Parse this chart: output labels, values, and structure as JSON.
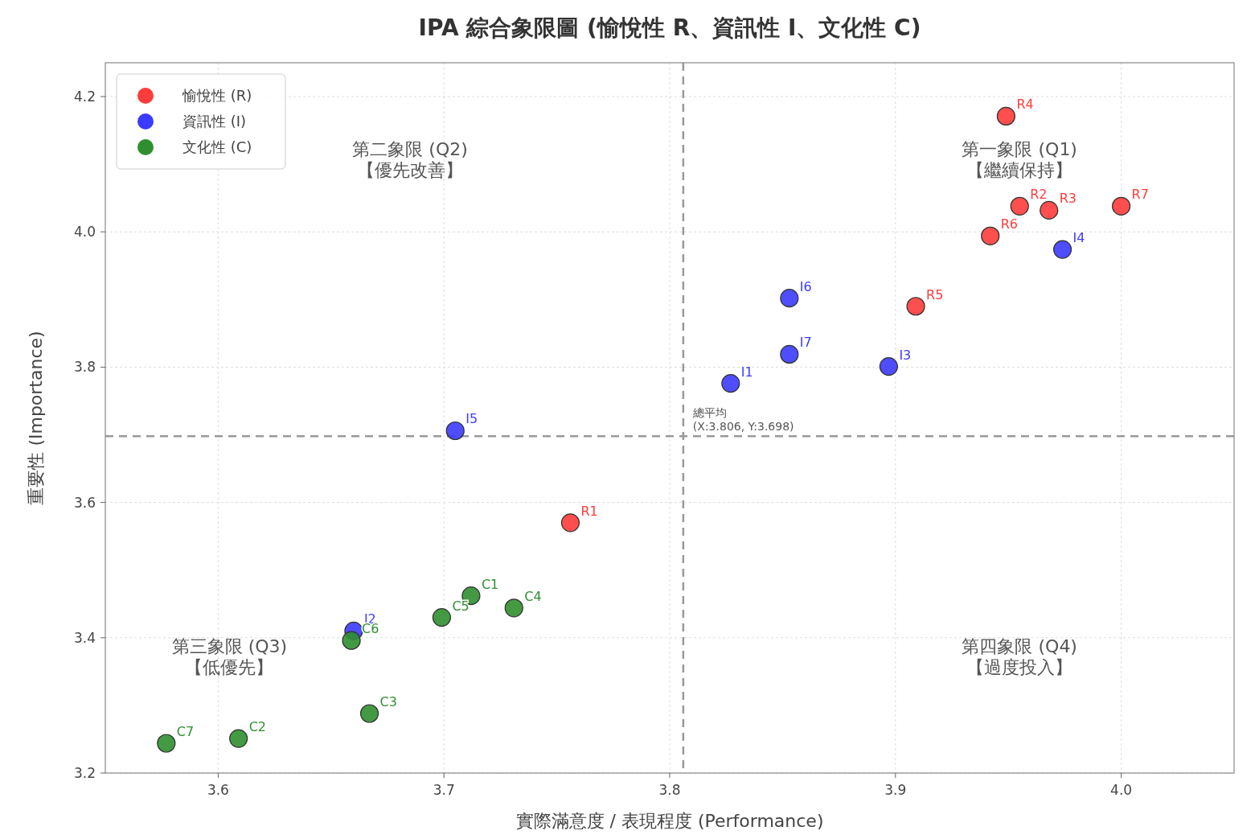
{
  "chart_data": {
    "type": "scatter",
    "title": "IPA 綜合象限圖 (愉悅性 R、資訊性 I、文化性 C)",
    "xlabel": "實際滿意度 / 表現程度 (Performance)",
    "ylabel": "重要性 (Importance)",
    "xlim": [
      3.55,
      4.05
    ],
    "ylim": [
      3.2,
      4.25
    ],
    "xticks": [
      3.6,
      3.7,
      3.8,
      3.9,
      {
        "value": 4,
        "label": "4.0"
      }
    ],
    "yticks": [
      3.2,
      3.4,
      3.6,
      3.8,
      {
        "value": 4,
        "label": "4.0"
      },
      4.2
    ],
    "grid": true,
    "legend": "top left",
    "marker": "circle",
    "series": [
      {
        "name": "愉悅性 (R)",
        "color": "#ff3b3b",
        "x": [
          3.756,
          3.955,
          3.968,
          3.949,
          3.909,
          3.942,
          4.0
        ],
        "values": [
          3.57,
          4.038,
          4.032,
          4.171,
          3.89,
          3.994,
          4.038
        ],
        "value_labels": [
          "R1",
          "R2",
          "R3",
          "R4",
          "R5",
          "R6",
          "R7"
        ]
      },
      {
        "name": "資訊性 (I)",
        "color": "#3b3bff",
        "x": [
          3.827,
          3.66,
          3.897,
          3.974,
          3.705,
          3.853,
          3.853
        ],
        "values": [
          3.776,
          3.41,
          3.801,
          3.974,
          3.706,
          3.902,
          3.819
        ],
        "value_labels": [
          "I1",
          "I2",
          "I3",
          "I4",
          "I5",
          "I6",
          "I7"
        ]
      },
      {
        "name": "文化性 (C)",
        "color": "#2f8f2f",
        "x": [
          3.712,
          3.609,
          3.667,
          3.731,
          3.699,
          3.659,
          3.577
        ],
        "values": [
          3.462,
          3.251,
          3.288,
          3.444,
          3.43,
          3.396,
          3.244
        ],
        "value_labels": [
          "C1",
          "C2",
          "C3",
          "C4",
          "C5",
          "C6",
          "C7"
        ]
      }
    ],
    "ref_lines": [
      {
        "axis": "x",
        "value": 3.806,
        "color": "#999999",
        "line_style": "dashed"
      },
      {
        "axis": "y",
        "value": 3.698,
        "color": "#999999",
        "line_style": "dashed"
      }
    ],
    "annotations": [
      {
        "text": "總平均\n(X:3.806, Y:3.698)",
        "x": 3.806,
        "y": 3.698
      },
      "第一象限 (Q1)\n【繼續保持】",
      "第二象限 (Q2)\n【優先改善】",
      "第三象限 (Q3)\n【低優先】",
      "第四象限 (Q4)\n【過度投入】"
    ]
  }
}
